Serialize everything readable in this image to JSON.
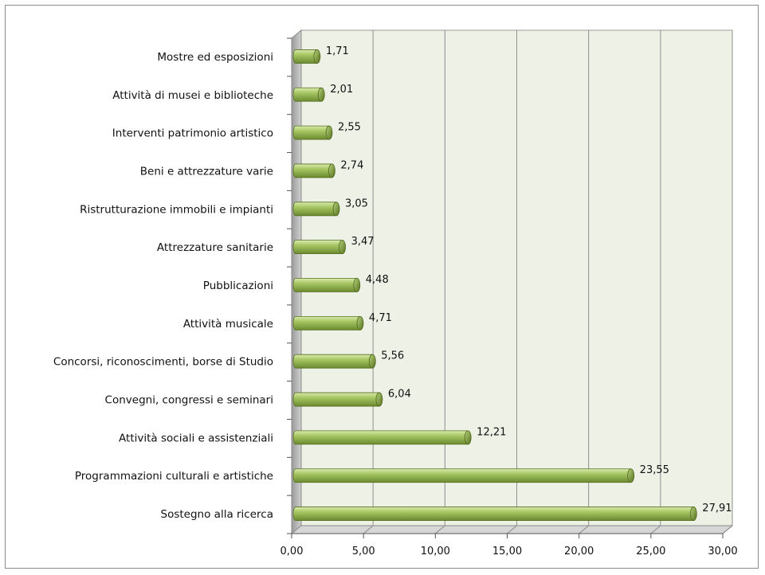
{
  "chart_data": {
    "type": "bar",
    "orientation": "horizontal",
    "categories": [
      "Mostre ed esposizioni",
      "Attività di musei e biblioteche",
      "Interventi patrimonio artistico",
      "Beni e attrezzature varie",
      "Ristrutturazione immobili e impianti",
      "Attrezzature sanitarie",
      "Pubblicazioni",
      "Attività musicale",
      "Concorsi, riconoscimenti, borse di Studio",
      "Convegni, congressi e seminari",
      "Attività sociali e assistenziali",
      "Programmazioni culturali e artistiche",
      "Sostegno alla ricerca"
    ],
    "values": [
      1.71,
      2.01,
      2.55,
      2.74,
      3.05,
      3.47,
      4.48,
      4.71,
      5.56,
      6.04,
      12.21,
      23.55,
      27.91
    ],
    "value_labels": [
      "1,71",
      "2,01",
      "2,55",
      "2,74",
      "3,05",
      "3,47",
      "4,48",
      "4,71",
      "5,56",
      "6,04",
      "12,21",
      "23,55",
      "27,91"
    ],
    "xlim": [
      0,
      30
    ],
    "x_ticks": [
      0,
      5,
      10,
      15,
      20,
      25,
      30
    ],
    "x_tick_labels": [
      "0,00",
      "5,00",
      "10,00",
      "15,00",
      "20,00",
      "25,00",
      "30,00"
    ],
    "grid": true,
    "title": "",
    "xlabel": "",
    "ylabel": "",
    "colors": {
      "bar_light": "#c8e08a",
      "bar_mid": "#9bbb59",
      "bar_dark": "#5f7a2a",
      "plot_background": "#eef1e6",
      "wall": "#c7c7c7",
      "grid": "#8f8f8f"
    }
  }
}
